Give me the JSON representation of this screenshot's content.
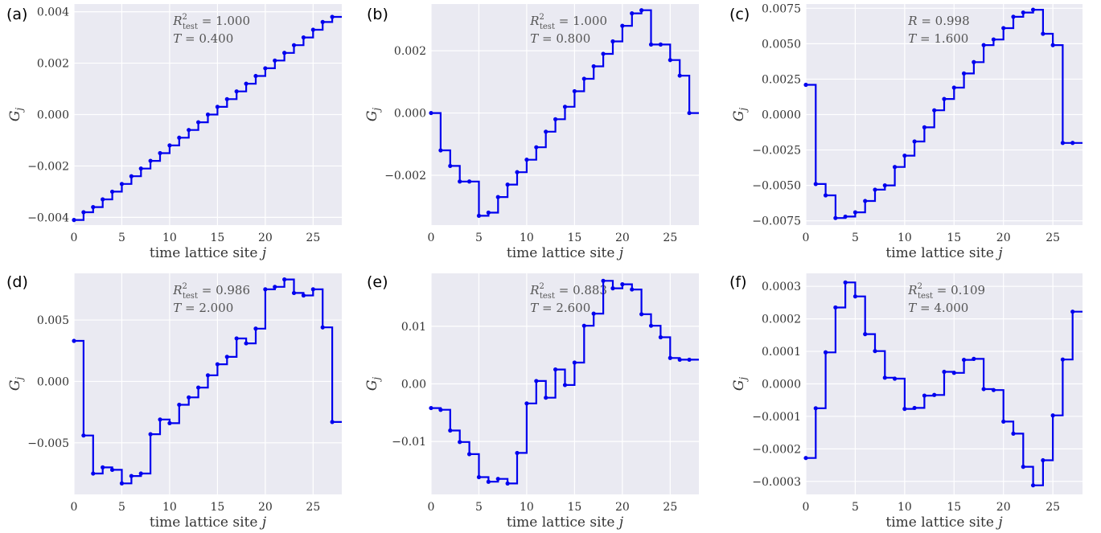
{
  "chart_data": [
    {
      "panel": "(a)",
      "type": "line",
      "step": "post",
      "xlabel": "time lattice site j",
      "ylabel": "G_j",
      "xlim": [
        0,
        28
      ],
      "ylim": [
        -0.0043,
        0.0043
      ],
      "xticks": [
        0,
        5,
        10,
        15,
        20,
        25
      ],
      "yticks": [
        -0.004,
        -0.002,
        0.0,
        0.002,
        0.004
      ],
      "ytick_labels": [
        "−0.004",
        "−0.002",
        "0.000",
        "0.002",
        "0.004"
      ],
      "annotation": [
        "R²_test = 1.000",
        "T = 0.400"
      ],
      "series": [
        {
          "x": [
            0,
            1,
            2,
            3,
            4,
            5,
            6,
            7,
            8,
            9,
            10,
            11,
            12,
            13,
            14,
            15,
            16,
            17,
            18,
            19,
            20,
            21,
            22,
            23,
            24,
            25,
            26,
            27
          ],
          "values": [
            -0.0041,
            -0.0038,
            -0.0036,
            -0.0033,
            -0.003,
            -0.0027,
            -0.0024,
            -0.0021,
            -0.0018,
            -0.0015,
            -0.0012,
            -0.0009,
            -0.0006,
            -0.0003,
            0.0,
            0.0003,
            0.0006,
            0.0009,
            0.0012,
            0.0015,
            0.0018,
            0.0021,
            0.0024,
            0.0027,
            0.003,
            0.0033,
            0.0036,
            0.0038
          ]
        }
      ],
      "color": "#0000ee"
    },
    {
      "panel": "(b)",
      "type": "line",
      "step": "post",
      "xlabel": "time lattice site j",
      "ylabel": "G_j",
      "xlim": [
        0,
        28
      ],
      "ylim": [
        -0.0036,
        0.0035
      ],
      "xticks": [
        0,
        5,
        10,
        15,
        20,
        25
      ],
      "yticks": [
        -0.002,
        0.0,
        0.002
      ],
      "ytick_labels": [
        "−0.002",
        "0.000",
        "0.002"
      ],
      "annotation": [
        "R²_test = 1.000",
        "T = 0.800"
      ],
      "series": [
        {
          "x": [
            0,
            1,
            2,
            3,
            4,
            5,
            6,
            7,
            8,
            9,
            10,
            11,
            12,
            13,
            14,
            15,
            16,
            17,
            18,
            19,
            20,
            21,
            22,
            23,
            24,
            25,
            26,
            27
          ],
          "values": [
            0.0,
            -0.0012,
            -0.0017,
            -0.0022,
            -0.0022,
            -0.0033,
            -0.0032,
            -0.0027,
            -0.0023,
            -0.0019,
            -0.0015,
            -0.0011,
            -0.0006,
            -0.0002,
            0.0002,
            0.0007,
            0.0011,
            0.0015,
            0.0019,
            0.0023,
            0.0028,
            0.0032,
            0.0033,
            0.0022,
            0.0022,
            0.0017,
            0.0012,
            0.0
          ]
        }
      ],
      "color": "#0000ee"
    },
    {
      "panel": "(c)",
      "type": "line",
      "step": "post",
      "xlabel": "time lattice site j",
      "ylabel": "G_j",
      "xlim": [
        0,
        28
      ],
      "ylim": [
        -0.0078,
        0.0078
      ],
      "xticks": [
        0,
        5,
        10,
        15,
        20,
        25
      ],
      "yticks": [
        -0.0075,
        -0.005,
        -0.0025,
        0.0,
        0.0025,
        0.005,
        0.0075
      ],
      "ytick_labels": [
        "−0.0075",
        "−0.0050",
        "−0.0025",
        "0.0000",
        "0.0025",
        "0.0050",
        "0.0075"
      ],
      "annotation": [
        "R      = 0.998",
        "T = 1.600"
      ],
      "series": [
        {
          "x": [
            0,
            1,
            2,
            3,
            4,
            5,
            6,
            7,
            8,
            9,
            10,
            11,
            12,
            13,
            14,
            15,
            16,
            17,
            18,
            19,
            20,
            21,
            22,
            23,
            24,
            25,
            26,
            27
          ],
          "values": [
            0.0021,
            -0.0049,
            -0.0057,
            -0.0073,
            -0.0072,
            -0.0069,
            -0.0061,
            -0.0053,
            -0.005,
            -0.0037,
            -0.0029,
            -0.0019,
            -0.0009,
            0.0003,
            0.0011,
            0.0019,
            0.0029,
            0.0037,
            0.0049,
            0.0053,
            0.0061,
            0.0069,
            0.0072,
            0.0074,
            0.0057,
            0.0049,
            -0.002,
            -0.002
          ]
        }
      ],
      "color": "#0000ee"
    },
    {
      "panel": "(d)",
      "type": "line",
      "step": "post",
      "xlabel": "time lattice site j",
      "ylabel": "G_j",
      "xlim": [
        0,
        28
      ],
      "ylim": [
        -0.0092,
        0.0088
      ],
      "xticks": [
        0,
        5,
        10,
        15,
        20,
        25
      ],
      "yticks": [
        -0.005,
        0.0,
        0.005
      ],
      "ytick_labels": [
        "−0.005",
        "0.000",
        "0.005"
      ],
      "annotation": [
        "R²_test = 0.986",
        "T = 2.000"
      ],
      "series": [
        {
          "x": [
            0,
            1,
            2,
            3,
            4,
            5,
            6,
            7,
            8,
            9,
            10,
            11,
            12,
            13,
            14,
            15,
            16,
            17,
            18,
            19,
            20,
            21,
            22,
            23,
            24,
            25,
            26,
            27
          ],
          "values": [
            0.0033,
            -0.0044,
            -0.0075,
            -0.007,
            -0.0072,
            -0.0083,
            -0.0077,
            -0.0075,
            -0.0043,
            -0.0031,
            -0.0034,
            -0.0019,
            -0.0013,
            -0.0005,
            0.0005,
            0.0014,
            0.002,
            0.0035,
            0.0031,
            0.0043,
            0.0075,
            0.0077,
            0.0083,
            0.0072,
            0.007,
            0.0075,
            0.0044,
            -0.0033
          ]
        }
      ],
      "color": "#0000ee"
    },
    {
      "panel": "(e)",
      "type": "line",
      "step": "post",
      "xlabel": "time lattice site j",
      "ylabel": "G_j",
      "xlim": [
        0,
        28
      ],
      "ylim": [
        -0.0192,
        0.0192
      ],
      "xticks": [
        0,
        5,
        10,
        15,
        20,
        25
      ],
      "yticks": [
        -0.01,
        0.0,
        0.01
      ],
      "ytick_labels": [
        "−0.01",
        "0.00",
        "0.01"
      ],
      "annotation": [
        "R²_test = 0.883",
        "T = 2.600"
      ],
      "series": [
        {
          "x": [
            0,
            1,
            2,
            3,
            4,
            5,
            6,
            7,
            8,
            9,
            10,
            11,
            12,
            13,
            14,
            15,
            16,
            17,
            18,
            19,
            20,
            21,
            22,
            23,
            24,
            25,
            26,
            27
          ],
          "values": [
            -0.0042,
            -0.0045,
            -0.0081,
            -0.0101,
            -0.0122,
            -0.0162,
            -0.017,
            -0.0165,
            -0.0173,
            -0.012,
            -0.0034,
            0.0005,
            -0.0024,
            0.0025,
            -0.0002,
            0.0037,
            0.0101,
            0.0122,
            0.0179,
            0.0166,
            0.0173,
            0.0164,
            0.0121,
            0.0101,
            0.0081,
            0.0045,
            0.0042,
            0.0042
          ]
        }
      ],
      "color": "#0000ee"
    },
    {
      "panel": "(f)",
      "type": "line",
      "step": "post",
      "xlabel": "time lattice site j",
      "ylabel": "G_j",
      "xlim": [
        0,
        28
      ],
      "ylim": [
        -0.00034,
        0.00034
      ],
      "xticks": [
        0,
        5,
        10,
        15,
        20,
        25
      ],
      "yticks": [
        -0.0003,
        -0.0002,
        -0.0001,
        0.0,
        0.0001,
        0.0002,
        0.0003
      ],
      "ytick_labels": [
        "−0.0003",
        "−0.0002",
        "−0.0001",
        "0.0000",
        "0.0001",
        "0.0002",
        "0.0003"
      ],
      "annotation": [
        "R²_test = 0.109",
        "T = 4.000"
      ],
      "series": [
        {
          "x": [
            0,
            1,
            2,
            3,
            4,
            5,
            6,
            7,
            8,
            9,
            10,
            11,
            12,
            13,
            14,
            15,
            16,
            17,
            18,
            19,
            20,
            21,
            22,
            23,
            24,
            25,
            26,
            27
          ],
          "values": [
            -0.000228,
            -7.5e-05,
            9.7e-05,
            0.000235,
            0.000312,
            0.000269,
            0.000153,
            0.000101,
            1.9e-05,
            1.6e-05,
            -7.7e-05,
            -7.4e-05,
            -3.6e-05,
            -3.4e-05,
            3.7e-05,
            3.4e-05,
            7.4e-05,
            7.7e-05,
            -1.6e-05,
            -1.9e-05,
            -0.000116,
            -0.000153,
            -0.000255,
            -0.000312,
            -0.000235,
            -9.7e-05,
            7.5e-05,
            0.000222
          ]
        }
      ],
      "color": "#0000ee"
    }
  ]
}
